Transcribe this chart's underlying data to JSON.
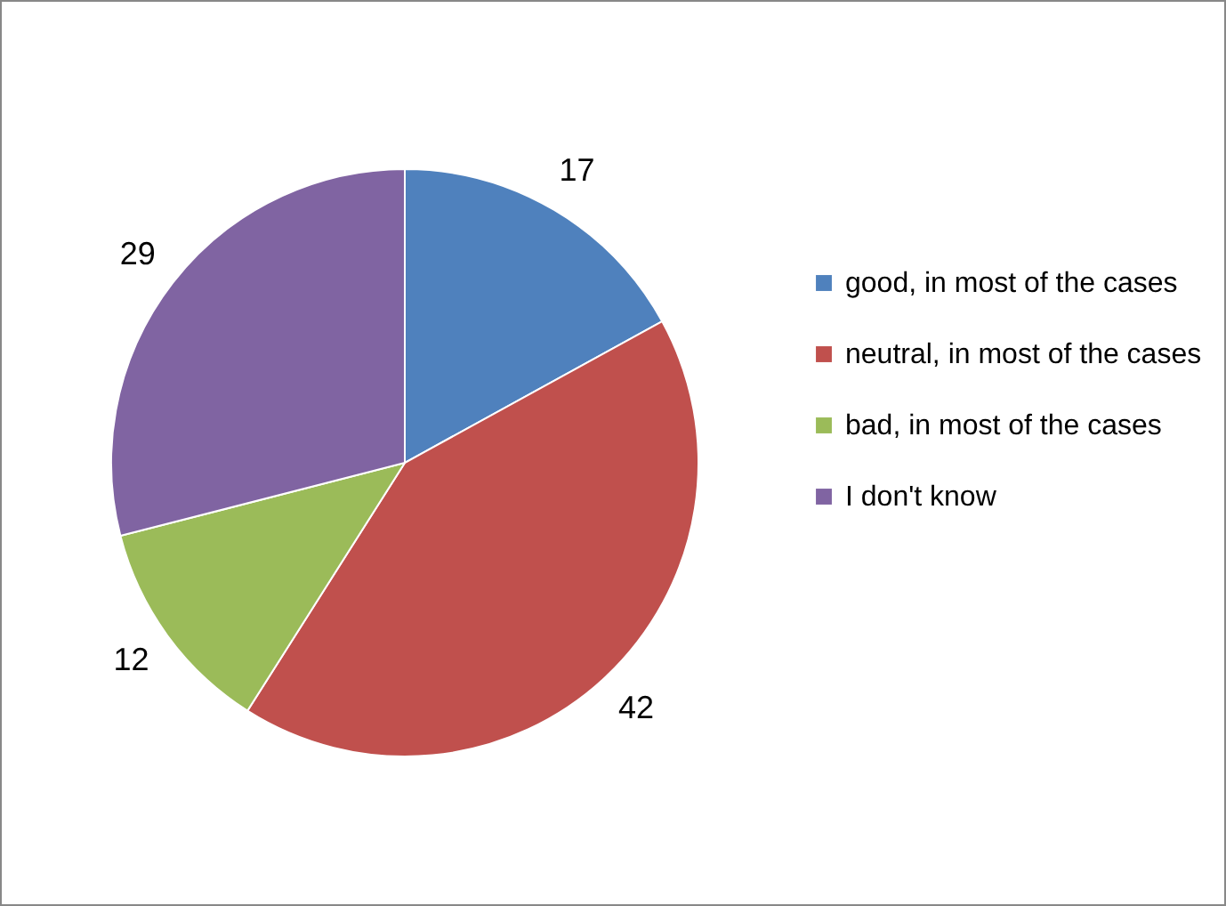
{
  "chart_data": {
    "type": "pie",
    "categories": [
      "good, in most of the cases",
      "neutral, in most of the cases",
      "bad, in most of the cases",
      "I don't know"
    ],
    "values": [
      17,
      42,
      12,
      29
    ],
    "colors": [
      "#4f81bd",
      "#c0504d",
      "#9bbb59",
      "#8064a2"
    ],
    "data_labels": true,
    "legend": "right"
  }
}
